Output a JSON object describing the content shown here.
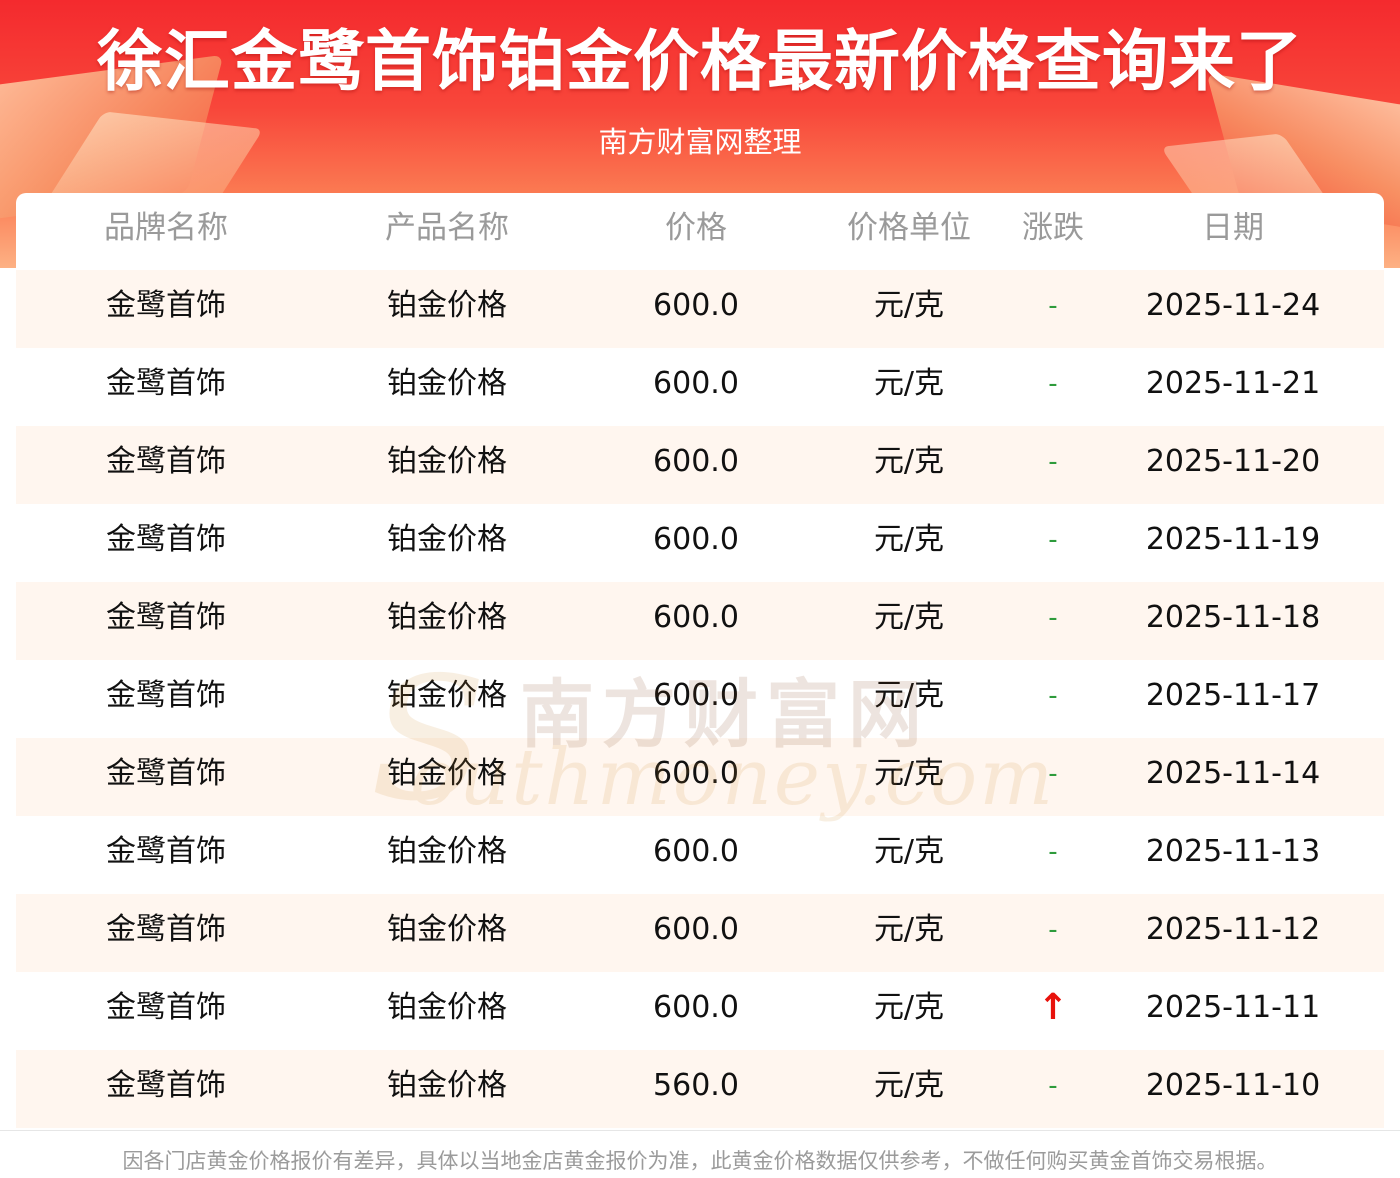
{
  "header": {
    "title": "徐汇金鹭首饰铂金价格最新价格查询来了",
    "subtitle": "南方财富网整理"
  },
  "table": {
    "columns": [
      "品牌名称",
      "产品名称",
      "价格",
      "价格单位",
      "涨跌",
      "日期"
    ],
    "rows": [
      {
        "brand": "金鹭首饰",
        "product": "铂金价格",
        "price": "600.0",
        "unit": "元/克",
        "trend": "-",
        "date": "2025-11-24"
      },
      {
        "brand": "金鹭首饰",
        "product": "铂金价格",
        "price": "600.0",
        "unit": "元/克",
        "trend": "-",
        "date": "2025-11-21"
      },
      {
        "brand": "金鹭首饰",
        "product": "铂金价格",
        "price": "600.0",
        "unit": "元/克",
        "trend": "-",
        "date": "2025-11-20"
      },
      {
        "brand": "金鹭首饰",
        "product": "铂金价格",
        "price": "600.0",
        "unit": "元/克",
        "trend": "-",
        "date": "2025-11-19"
      },
      {
        "brand": "金鹭首饰",
        "product": "铂金价格",
        "price": "600.0",
        "unit": "元/克",
        "trend": "-",
        "date": "2025-11-18"
      },
      {
        "brand": "金鹭首饰",
        "product": "铂金价格",
        "price": "600.0",
        "unit": "元/克",
        "trend": "-",
        "date": "2025-11-17"
      },
      {
        "brand": "金鹭首饰",
        "product": "铂金价格",
        "price": "600.0",
        "unit": "元/克",
        "trend": "-",
        "date": "2025-11-14"
      },
      {
        "brand": "金鹭首饰",
        "product": "铂金价格",
        "price": "600.0",
        "unit": "元/克",
        "trend": "-",
        "date": "2025-11-13"
      },
      {
        "brand": "金鹭首饰",
        "product": "铂金价格",
        "price": "600.0",
        "unit": "元/克",
        "trend": "-",
        "date": "2025-11-12"
      },
      {
        "brand": "金鹭首饰",
        "product": "铂金价格",
        "price": "600.0",
        "unit": "元/克",
        "trend": "↑",
        "date": "2025-11-11"
      },
      {
        "brand": "金鹭首饰",
        "product": "铂金价格",
        "price": "560.0",
        "unit": "元/克",
        "trend": "-",
        "date": "2025-11-10"
      }
    ]
  },
  "watermark": {
    "cn": "南方财富网",
    "en": "outhmoney.com",
    "initial": "S"
  },
  "footer": {
    "disclaimer": "因各门店黄金价格报价有差异，具体以当地金店黄金报价为准，此黄金价格数据仅供参考，不做任何购买黄金首饰交易根据。"
  },
  "colors": {
    "banner_top": "#f42a2e",
    "banner_bottom": "#fdb184",
    "row_alt": "#fff6ef",
    "trend_flat": "#2e9b3c",
    "trend_up": "#e8120c",
    "header_text": "#9a9a9a"
  }
}
